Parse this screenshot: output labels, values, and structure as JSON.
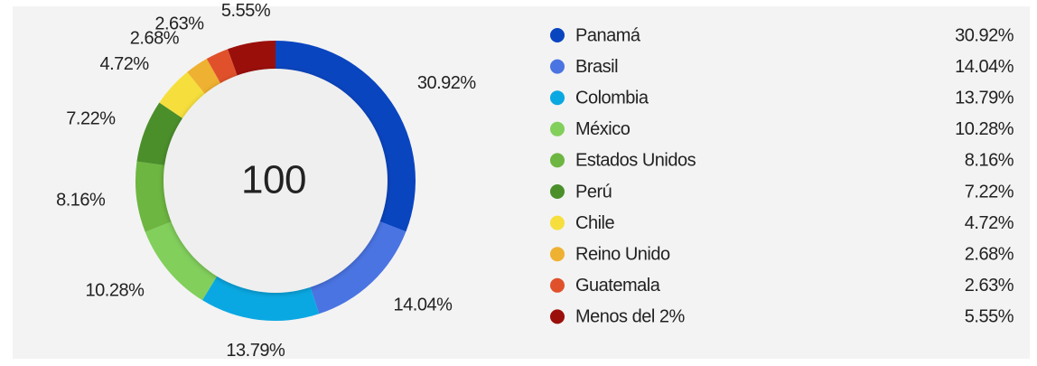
{
  "chart_data": {
    "type": "donut",
    "center_text": "100",
    "categories": [
      "Panamá",
      "Brasil",
      "Colombia",
      "México",
      "Estados Unidos",
      "Perú",
      "Chile",
      "Reino Unido",
      "Guatemala",
      "Menos del 2%"
    ],
    "values": [
      30.92,
      14.04,
      13.79,
      10.28,
      8.16,
      7.22,
      4.72,
      2.68,
      2.63,
      5.55
    ],
    "value_labels": [
      "30.92%",
      "14.04%",
      "13.79%",
      "10.28%",
      "8.16%",
      "7.22%",
      "4.72%",
      "2.68%",
      "2.63%",
      "5.55%"
    ],
    "colors": [
      "#0a45c0",
      "#4a74e2",
      "#0aa8e2",
      "#82cf5c",
      "#6db641",
      "#4b8f2b",
      "#f6df3c",
      "#efb131",
      "#e0512b",
      "#9b0f0b"
    ],
    "legend": "right"
  }
}
